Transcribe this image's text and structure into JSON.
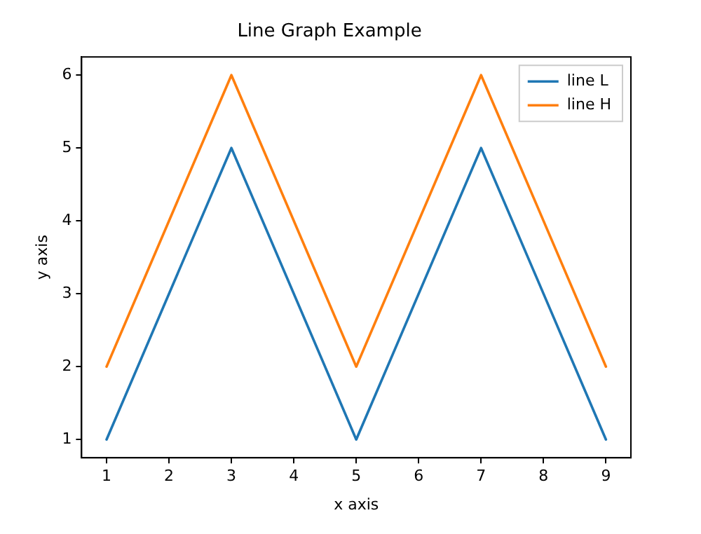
{
  "chart_data": {
    "type": "line",
    "title": "Line Graph Example",
    "xlabel": "x axis",
    "ylabel": "y axis",
    "x": [
      1,
      3,
      5,
      7,
      9
    ],
    "series": [
      {
        "name": "line L",
        "color": "#1f77b4",
        "values": [
          1,
          5,
          1,
          5,
          1
        ]
      },
      {
        "name": "line H",
        "color": "#ff7f0e",
        "values": [
          2,
          6,
          2,
          6,
          2
        ]
      }
    ],
    "xlim": [
      0.6,
      9.4
    ],
    "xticks": [
      1,
      2,
      3,
      4,
      5,
      6,
      7,
      8,
      9
    ],
    "ylim": [
      0.75,
      6.25
    ],
    "yticks": [
      1,
      2,
      3,
      4,
      5,
      6
    ],
    "grid": false,
    "legend": "top right",
    "marker": "none",
    "line_style": "solid"
  }
}
